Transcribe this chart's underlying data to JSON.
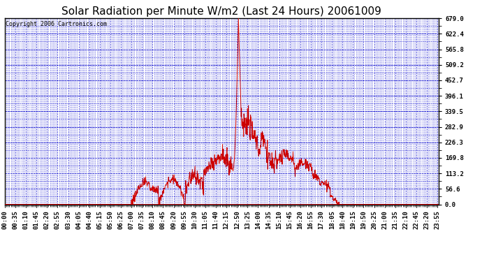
{
  "title": "Solar Radiation per Minute W/m2 (Last 24 Hours) 20061009",
  "copyright_text": "Copyright 2006 Cartronics.com",
  "yticks": [
    0.0,
    56.6,
    113.2,
    169.8,
    226.3,
    282.9,
    339.5,
    396.1,
    452.7,
    509.2,
    565.8,
    622.4,
    679.0
  ],
  "ymin": 0.0,
  "ymax": 679.0,
  "line_color": "#cc0000",
  "background_color": "#ffffff",
  "plot_bg_color": "#ffffff",
  "grid_color": "#0000cc",
  "border_color": "#000000",
  "title_fontsize": 11,
  "tick_fontsize": 6.5,
  "copyright_fontsize": 6
}
